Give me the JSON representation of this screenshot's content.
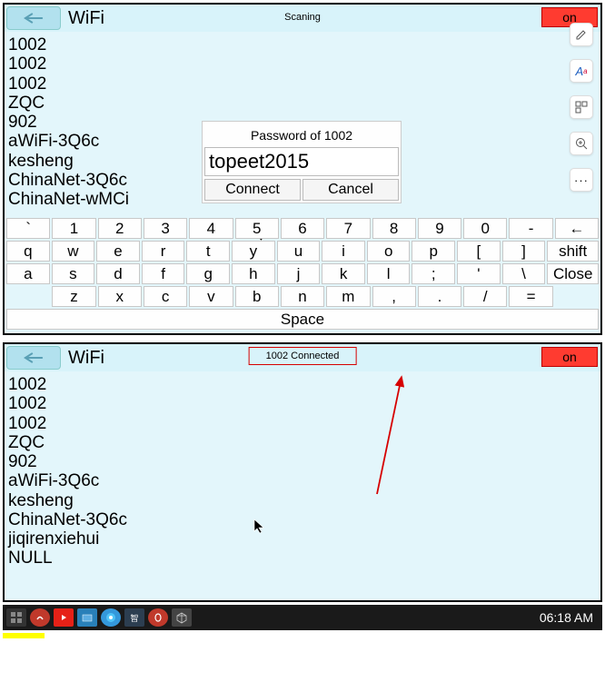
{
  "panel1": {
    "title": "WiFi",
    "status": "Scaning",
    "on_label": "on",
    "networks": [
      "1002",
      "1002",
      "1002",
      "ZQC",
      "902",
      "aWiFi-3Q6c",
      "kesheng",
      "ChinaNet-3Q6c",
      "ChinaNet-wMCi"
    ],
    "dialog": {
      "title": "Password of 1002",
      "value": "topeet2015",
      "connect": "Connect",
      "cancel": "Cancel"
    },
    "keyboard": {
      "row1": [
        "`",
        "1",
        "2",
        "3",
        "4",
        "5",
        "6",
        "7",
        "8",
        "9",
        "0",
        "-",
        "←"
      ],
      "row2": [
        "q",
        "w",
        "e",
        "r",
        "t",
        "y",
        "u",
        "i",
        "o",
        "p",
        "[",
        "]",
        "shift"
      ],
      "row3": [
        "a",
        "s",
        "d",
        "f",
        "g",
        "h",
        "j",
        "k",
        "l",
        ";",
        "'",
        "\\",
        "Close"
      ],
      "row4": [
        "z",
        "x",
        "c",
        "v",
        "b",
        "n",
        "m",
        ",",
        ".",
        "/",
        "="
      ],
      "space": "Space"
    }
  },
  "panel2": {
    "title": "WiFi",
    "status": "1002 Connected",
    "on_label": "on",
    "networks": [
      "1002",
      "1002",
      "1002",
      "ZQC",
      "902",
      "aWiFi-3Q6c",
      "kesheng",
      "ChinaNet-3Q6c",
      "jiqirenxiehui",
      "NULL"
    ]
  },
  "taskbar": {
    "clock": "06:18 AM"
  },
  "colors": {
    "panel_bg": "#e3f6fb",
    "on_btn": "#ff3b30",
    "annotation": "#d60000"
  }
}
